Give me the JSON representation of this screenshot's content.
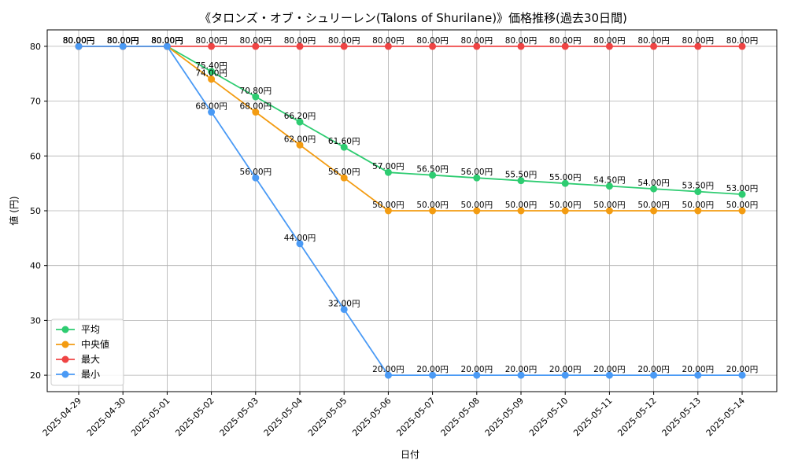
{
  "chart_data": {
    "type": "line",
    "title": "《タロンズ・オブ・シュリーレン(Talons of Shurilane)》価格推移(過去30日間)",
    "xlabel": "日付",
    "ylabel": "値 (円)",
    "ylim": [
      17,
      83
    ],
    "yticks": [
      20,
      30,
      40,
      50,
      60,
      70,
      80
    ],
    "grid": true,
    "legend_position": "lower-left",
    "value_suffix": "円",
    "x": [
      "2025-04-29",
      "2025-04-30",
      "2025-05-01",
      "2025-05-02",
      "2025-05-03",
      "2025-05-04",
      "2025-05-05",
      "2025-05-06",
      "2025-05-07",
      "2025-05-08",
      "2025-05-09",
      "2025-05-10",
      "2025-05-11",
      "2025-05-12",
      "2025-05-13",
      "2025-05-14"
    ],
    "series": [
      {
        "name": "平均",
        "color": "#2ecc71",
        "values": [
          80,
          80,
          80,
          75.4,
          70.8,
          66.2,
          61.6,
          57,
          56.5,
          56,
          55.5,
          55,
          54.5,
          54,
          53.5,
          53
        ],
        "labels": [
          "80.00円",
          "80.00円",
          "80.00円",
          "75.40円",
          "70.80円",
          "66.20円",
          "61.60円",
          "57.00円",
          "56.50円",
          "56.00円",
          "55.50円",
          "55.00円",
          "54.50円",
          "54.00円",
          "53.50円",
          "53.00円"
        ]
      },
      {
        "name": "中央値",
        "color": "#f39c12",
        "values": [
          80,
          80,
          80,
          74,
          68,
          62,
          56,
          50,
          50,
          50,
          50,
          50,
          50,
          50,
          50,
          50
        ],
        "labels": [
          "80.00円",
          "80.00円",
          "80.00円",
          "74.00円",
          "68.00円",
          "62.00円",
          "56.00円",
          "50.00円",
          "50.00円",
          "50.00円",
          "50.00円",
          "50.00円",
          "50.00円",
          "50.00円",
          "50.00円",
          "50.00円"
        ]
      },
      {
        "name": "最大",
        "color": "#ef4444",
        "values": [
          80,
          80,
          80,
          80,
          80,
          80,
          80,
          80,
          80,
          80,
          80,
          80,
          80,
          80,
          80,
          80
        ],
        "labels": [
          "80.00円",
          "80.00円",
          "80.00円",
          "80.00円",
          "80.00円",
          "80.00円",
          "80.00円",
          "80.00円",
          "80.00円",
          "80.00円",
          "80.00円",
          "80.00円",
          "80.00円",
          "80.00円",
          "80.00円",
          "80.00円"
        ]
      },
      {
        "name": "最小",
        "color": "#4a9af5",
        "values": [
          80,
          80,
          80,
          68,
          56,
          44,
          32,
          20,
          20,
          20,
          20,
          20,
          20,
          20,
          20,
          20
        ],
        "labels": [
          "80.00円",
          "80.00円",
          "80.00円",
          "68.00円",
          "56.00円",
          "44.00円",
          "32.00円",
          "20.00円",
          "20.00円",
          "20.00円",
          "20.00円",
          "20.00円",
          "20.00円",
          "20.00円",
          "20.00円",
          "20.00円"
        ]
      }
    ]
  }
}
